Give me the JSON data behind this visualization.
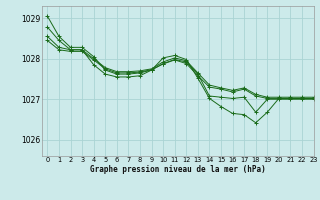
{
  "title": "Graphe pression niveau de la mer (hPa)",
  "bg_color": "#cceaea",
  "grid_color": "#aad4d4",
  "line_color": "#1a6b1a",
  "marker_color": "#1a6b1a",
  "xlim": [
    -0.5,
    23
  ],
  "ylim": [
    1025.6,
    1029.3
  ],
  "yticks": [
    1026,
    1027,
    1028,
    1029
  ],
  "xticks": [
    0,
    1,
    2,
    3,
    4,
    5,
    6,
    7,
    8,
    9,
    10,
    11,
    12,
    13,
    14,
    15,
    16,
    17,
    18,
    19,
    20,
    21,
    22,
    23
  ],
  "series": [
    [
      1029.05,
      1028.55,
      1028.28,
      1028.28,
      1028.05,
      1027.72,
      1027.62,
      1027.62,
      1027.65,
      1027.72,
      1027.88,
      1027.98,
      1027.92,
      1027.62,
      1027.08,
      1027.05,
      1027.02,
      1027.05,
      1026.68,
      1027.0,
      1027.0,
      1027.0,
      1027.0,
      1027.0
    ],
    [
      1028.55,
      1028.28,
      1028.22,
      1028.22,
      1028.0,
      1027.78,
      1027.68,
      1027.68,
      1027.7,
      1027.75,
      1027.92,
      1028.02,
      1027.95,
      1027.65,
      1027.35,
      1027.28,
      1027.22,
      1027.28,
      1027.12,
      1027.05,
      1027.05,
      1027.05,
      1027.05,
      1027.05
    ],
    [
      1028.45,
      1028.22,
      1028.18,
      1028.18,
      1027.97,
      1027.75,
      1027.65,
      1027.65,
      1027.67,
      1027.73,
      1027.87,
      1027.97,
      1027.88,
      1027.58,
      1027.3,
      1027.25,
      1027.18,
      1027.25,
      1027.08,
      1027.02,
      1027.02,
      1027.02,
      1027.02,
      1027.02
    ],
    [
      1028.78,
      1028.45,
      1028.22,
      1028.22,
      1027.85,
      1027.62,
      1027.55,
      1027.55,
      1027.58,
      1027.72,
      1028.02,
      1028.08,
      1027.98,
      1027.52,
      1027.02,
      1026.82,
      1026.65,
      1026.62,
      1026.42,
      1026.68,
      1027.02,
      1027.02,
      1027.02,
      1027.02
    ]
  ]
}
